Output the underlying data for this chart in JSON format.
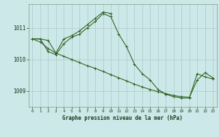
{
  "title": "Graphe pression niveau de la mer (hPa)",
  "background_color": "#cce8e8",
  "grid_color": "#b0cccc",
  "line_color": "#2d6020",
  "xlim": [
    -0.5,
    23.5
  ],
  "ylim": [
    1008.5,
    1011.75
  ],
  "yticks": [
    1009,
    1010,
    1011
  ],
  "xticks": [
    0,
    1,
    2,
    3,
    4,
    5,
    6,
    7,
    8,
    9,
    10,
    11,
    12,
    13,
    14,
    15,
    16,
    17,
    18,
    19,
    20,
    21,
    22,
    23
  ],
  "series": [
    {
      "x": [
        0,
        1,
        2,
        3,
        4,
        5,
        6,
        7,
        8,
        9,
        10,
        11,
        12,
        13,
        14,
        15,
        16,
        17,
        18,
        19,
        20,
        21,
        22,
        23
      ],
      "y": [
        1010.65,
        1010.65,
        1010.25,
        1010.15,
        1010.5,
        1010.7,
        1010.8,
        1011.0,
        1011.2,
        1011.45,
        1011.35,
        1010.8,
        1010.4,
        1009.85,
        1009.55,
        1009.35,
        1009.05,
        1008.9,
        1008.82,
        1008.78,
        1008.78,
        1009.55,
        1009.45,
        1009.38
      ]
    },
    {
      "x": [
        0,
        1,
        2,
        3,
        4,
        5,
        6,
        7,
        8,
        9,
        10
      ],
      "y": [
        1010.65,
        1010.65,
        1010.6,
        1010.2,
        1010.65,
        1010.75,
        1010.9,
        1011.1,
        1011.3,
        1011.5,
        1011.45
      ]
    },
    {
      "x": [
        0,
        1,
        2,
        3,
        4,
        5,
        6,
        7,
        8,
        9,
        10,
        11,
        12,
        13,
        14,
        15,
        16,
        17,
        18,
        19,
        20,
        21,
        22,
        23
      ],
      "y": [
        1010.65,
        1010.55,
        1010.35,
        1010.2,
        1010.1,
        1010.0,
        1009.9,
        1009.8,
        1009.72,
        1009.62,
        1009.52,
        1009.42,
        1009.32,
        1009.22,
        1009.13,
        1009.05,
        1008.98,
        1008.92,
        1008.86,
        1008.82,
        1008.8,
        1009.35,
        1009.58,
        1009.42
      ]
    }
  ]
}
